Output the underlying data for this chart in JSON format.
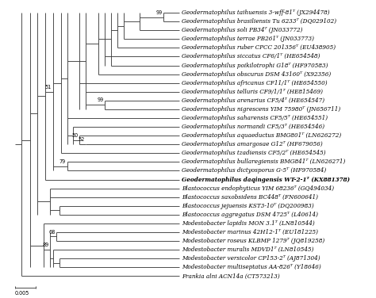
{
  "scale_bar_label": "0.005",
  "taxa": [
    "Geodermatophilus taihuensis 3-wff-81ᵀ (JX294478)",
    "Geodermatophilus brasiliensis Tu 6233ᵀ (DQ029102)",
    "Geodermatophilus soli PB34ᵀ (JN033772)",
    "Geodermatophilus terrae PB261ᵀ (JN033773)",
    "Geodermatophilus ruber CPCC 201356ᵀ (EU438905)",
    "Geodermatophilus siccatus CF6/1ᵀ (HE654548)",
    "Geodermatophilus poikilotrophi G18ᵀ (HF970583)",
    "Geodermatophilus obscurus DSM 43160ᵀ (X92356)",
    "Geodermatophilus africanus CF11/1ᵀ (HE654550)",
    "Geodermatophilus telluris CF9/1/1ᵀ (HE815469)",
    "Geodermatophilus arenarius CF5/4ᵀ (HE654547)",
    "Geodermatophilus nigrescens YIM 75980ᵀ (JN656711)",
    "Geodermatophilus saharensis CF5/5ᵀ (HE654551)",
    "Geodermatophilus normandi CF5/3ᵀ (HE654546)",
    "Geodermatophilus aquaeductus BMG801ᵀ (LN626272)",
    "Geodermatophilus amargosae G12ᵀ (HF679056)",
    "Geodermatophilus tzadiensis CF5/2ᵀ (HE654545)",
    "Geodermatophilus bullaregiensis BMG841ᵀ (LN626271)",
    "Geodermatophilus dictyosporus G-5ᵀ (HF970584)",
    "Geodermatophilus daqingensis WT-2-1ᵀ (KX881378)",
    "Blastococcus endophyticus YIM 68236ᵀ (GQ494034)",
    "Blastococcus saxobsidens BC448ᵀ (FN600641)",
    "Blastococcus jejuensis KST3-10ᵀ (DQ200983)",
    "Blastococcus aggregatus DSM 4725ᵀ (L40614)",
    "Modestobacter lapidis MON 3.1ᵀ (LN810544)",
    "Modestobacter marinus 42H12-1ᵀ (EU181225)",
    "Modestobacter roseus KLBMP 1279ᵀ (JQ819258)",
    "Modestobacter muralis MDVD1ᵀ (LN810545)",
    "Modestobacter versicolor CP153-2ᵀ (AJ871304)",
    "Modestobacter multiseptatus AA-826ᵀ (Y18646)",
    "Frankia alni ACN14a (CT573213)"
  ],
  "bold_taxon_idx": 19,
  "bg_color": "#ffffff",
  "line_color": "#404040",
  "text_color": "#000000",
  "fontsize": 5.2
}
